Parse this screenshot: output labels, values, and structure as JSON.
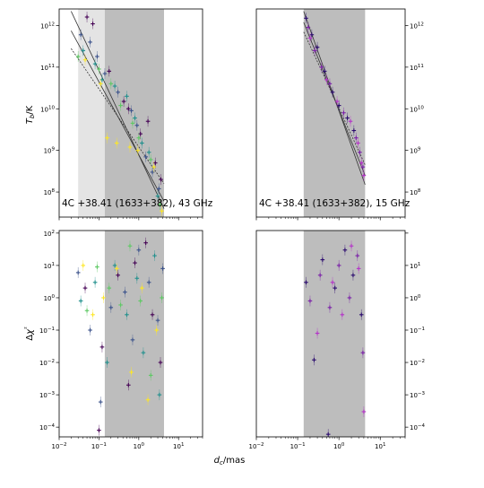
{
  "figure": {
    "xlabel": "d_c/mas",
    "ylabel_top": "T_b/K",
    "ylabel_bottom": "Δχ²"
  },
  "colors": {
    "axes": "#000000",
    "shade_band": "#bdbdbd",
    "shade_extra": "#e4e4e4",
    "fit_line": "#333333",
    "viridis": [
      "#440154",
      "#3b528b",
      "#21908d",
      "#5dc963",
      "#fde725"
    ],
    "purple_series": [
      "#2a0a6e",
      "#7a1fa8",
      "#b432c8"
    ]
  },
  "chart_data": [
    {
      "type": "scatter",
      "panel": "top-left",
      "annotation": "4C +38.41 (1633+382), 43 GHz",
      "xlabel": "",
      "ylabel": "T_b/K",
      "xscale": "log",
      "yscale": "log",
      "xlim": [
        0.01,
        40
      ],
      "ylim": [
        25000000,
        2500000000000
      ],
      "yticks": [
        "10^8",
        "10^9",
        "10^10",
        "10^11",
        "10^12"
      ],
      "ytick_side": "left",
      "xtick_labels": false,
      "shaded_band": [
        0.14,
        4.3
      ],
      "extra_shaded": [
        0.03,
        0.14
      ],
      "fit_lines": [
        {
          "x": [
            0.02,
            4.3
          ],
          "y": [
            2200000000000.0,
            40000000.0
          ]
        },
        {
          "x": [
            0.02,
            4.3
          ],
          "y": [
            750000000000.0,
            60000000.0
          ]
        },
        {
          "x": [
            0.02,
            4.3
          ],
          "y": [
            280000000000.0,
            160000000.0
          ]
        }
      ],
      "series": [
        {
          "color": "#440154",
          "points": [
            [
              0.05,
              1600000000000.0
            ],
            [
              0.07,
              1100000000000.0
            ],
            [
              0.18,
              80000000000.0
            ],
            [
              0.42,
              15000000000.0
            ],
            [
              1.1,
              2500000000.0
            ],
            [
              1.7,
              5000000000.0
            ],
            [
              2.6,
              500000000.0
            ],
            [
              3.6,
              200000000.0
            ],
            [
              0.55,
              10000000000.0
            ]
          ]
        },
        {
          "color": "#3b528b",
          "points": [
            [
              0.035,
              600000000000.0
            ],
            [
              0.06,
              400000000000.0
            ],
            [
              0.09,
              180000000000.0
            ],
            [
              0.14,
              70000000000.0
            ],
            [
              0.3,
              25000000000.0
            ],
            [
              0.65,
              9000000000.0
            ],
            [
              0.9,
              4000000000.0
            ],
            [
              1.5,
              700000000.0
            ],
            [
              2.2,
              300000000.0
            ],
            [
              3.2,
              120000000.0
            ]
          ]
        },
        {
          "color": "#21908d",
          "points": [
            [
              0.04,
              250000000000.0
            ],
            [
              0.08,
              120000000000.0
            ],
            [
              0.12,
              50000000000.0
            ],
            [
              0.25,
              35000000000.0
            ],
            [
              0.5,
              20000000000.0
            ],
            [
              0.8,
              6000000000.0
            ],
            [
              1.2,
              1500000000.0
            ],
            [
              1.8,
              900000000.0
            ],
            [
              3.0,
              80000000.0
            ]
          ]
        },
        {
          "color": "#5dc963",
          "points": [
            [
              0.03,
              180000000000.0
            ],
            [
              0.1,
              90000000000.0
            ],
            [
              0.2,
              40000000000.0
            ],
            [
              0.35,
              12000000000.0
            ],
            [
              0.7,
              4500000000.0
            ],
            [
              1.0,
              2000000000.0
            ],
            [
              2.0,
              600000000.0
            ],
            [
              3.4,
              50000000.0
            ]
          ]
        },
        {
          "color": "#fde725",
          "points": [
            [
              0.045,
              150000000000.0
            ],
            [
              0.11,
              40000000000.0
            ],
            [
              0.16,
              2000000000.0
            ],
            [
              0.28,
              1500000000.0
            ],
            [
              0.6,
              1200000000.0
            ],
            [
              0.95,
              1000000000.0
            ],
            [
              2.4,
              400000000.0
            ],
            [
              3.8,
              35000000.0
            ]
          ]
        }
      ]
    },
    {
      "type": "scatter",
      "panel": "top-right",
      "annotation": "4C +38.41 (1633+382), 15 GHz",
      "xlabel": "",
      "ylabel": "",
      "xscale": "log",
      "yscale": "log",
      "xlim": [
        0.01,
        40
      ],
      "ylim": [
        25000000,
        2500000000000
      ],
      "yticks": [
        "10^8",
        "10^9",
        "10^10",
        "10^11",
        "10^12"
      ],
      "ytick_side": "right",
      "xtick_labels": false,
      "shaded_band": [
        0.14,
        4.3
      ],
      "fit_lines": [
        {
          "x": [
            0.14,
            4.3
          ],
          "y": [
            2200000000000.0,
            150000000.0
          ]
        },
        {
          "x": [
            0.14,
            4.3
          ],
          "y": [
            1200000000000.0,
            250000000.0
          ]
        },
        {
          "x": [
            0.14,
            4.3
          ],
          "y": [
            700000000000.0,
            450000000.0
          ]
        }
      ],
      "series": [
        {
          "color": "#2a0a6e",
          "points": [
            [
              0.16,
              1500000000000.0
            ],
            [
              0.22,
              600000000000.0
            ],
            [
              0.3,
              300000000000.0
            ],
            [
              0.45,
              80000000000.0
            ],
            [
              0.7,
              25000000000.0
            ],
            [
              1.0,
              12000000000.0
            ],
            [
              1.6,
              6000000000.0
            ],
            [
              2.3,
              3000000000.0
            ]
          ]
        },
        {
          "color": "#7a1fa8",
          "points": [
            [
              0.18,
              900000000000.0
            ],
            [
              0.26,
              250000000000.0
            ],
            [
              0.38,
              100000000000.0
            ],
            [
              0.6,
              40000000000.0
            ],
            [
              1.3,
              8000000000.0
            ],
            [
              2.6,
              2000000000.0
            ],
            [
              3.2,
              900000000.0
            ],
            [
              3.8,
              400000000.0
            ]
          ]
        },
        {
          "color": "#b432c8",
          "points": [
            [
              0.2,
              500000000000.0
            ],
            [
              0.5,
              50000000000.0
            ],
            [
              0.9,
              15000000000.0
            ],
            [
              1.9,
              5000000000.0
            ],
            [
              2.9,
              1500000000.0
            ],
            [
              3.5,
              500000000.0
            ],
            [
              4.0,
              250000000.0
            ]
          ]
        }
      ]
    },
    {
      "type": "scatter",
      "panel": "bottom-left",
      "xlabel": "d_c/mas",
      "ylabel": "Δχ²",
      "xscale": "log",
      "yscale": "log",
      "xlim": [
        0.01,
        40
      ],
      "ylim": [
        5e-05,
        120
      ],
      "xticks": [
        "10^-2",
        "10^-1",
        "10^0",
        "10^1"
      ],
      "yticks": [
        "10^-4",
        "10^-3",
        "10^-2",
        "10^-1",
        "10^0",
        "10^1",
        "10^2"
      ],
      "ytick_side": "left",
      "shaded_band": [
        0.14,
        4.3
      ],
      "series": [
        {
          "color": "#440154",
          "points": [
            [
              0.045,
              2.0
            ],
            [
              0.1,
              8e-05
            ],
            [
              0.12,
              0.03
            ],
            [
              0.3,
              5.0
            ],
            [
              0.55,
              0.002
            ],
            [
              0.8,
              12
            ],
            [
              1.5,
              50
            ],
            [
              2.2,
              0.3
            ],
            [
              3.5,
              0.01
            ]
          ]
        },
        {
          "color": "#3b528b",
          "points": [
            [
              0.03,
              6.0
            ],
            [
              0.06,
              0.1
            ],
            [
              0.11,
              0.0006
            ],
            [
              0.2,
              0.5
            ],
            [
              0.45,
              1.5
            ],
            [
              0.7,
              0.05
            ],
            [
              1.0,
              30
            ],
            [
              1.8,
              3.0
            ],
            [
              3.0,
              0.2
            ],
            [
              4.0,
              8.0
            ]
          ]
        },
        {
          "color": "#21908d",
          "points": [
            [
              0.035,
              0.8
            ],
            [
              0.08,
              3.0
            ],
            [
              0.16,
              0.01
            ],
            [
              0.25,
              10
            ],
            [
              0.5,
              0.3
            ],
            [
              0.9,
              4.0
            ],
            [
              1.3,
              0.02
            ],
            [
              2.5,
              20
            ],
            [
              3.3,
              0.001
            ]
          ]
        },
        {
          "color": "#5dc963",
          "points": [
            [
              0.05,
              0.4
            ],
            [
              0.09,
              9.0
            ],
            [
              0.18,
              2.0
            ],
            [
              0.35,
              0.6
            ],
            [
              0.6,
              40
            ],
            [
              1.1,
              0.8
            ],
            [
              2.0,
              0.004
            ],
            [
              3.8,
              1.0
            ]
          ]
        },
        {
          "color": "#fde725",
          "points": [
            [
              0.04,
              10
            ],
            [
              0.07,
              0.3
            ],
            [
              0.13,
              1.0
            ],
            [
              0.28,
              8.0
            ],
            [
              0.65,
              0.005
            ],
            [
              1.2,
              2.0
            ],
            [
              1.7,
              0.0007
            ],
            [
              2.8,
              0.1
            ]
          ]
        }
      ]
    },
    {
      "type": "scatter",
      "panel": "bottom-right",
      "xlabel": "",
      "ylabel": "",
      "xscale": "log",
      "yscale": "log",
      "xlim": [
        0.01,
        40
      ],
      "ylim": [
        5e-05,
        120
      ],
      "xticks": [
        "10^-2",
        "10^-1",
        "10^0",
        "10^1"
      ],
      "yticks": [
        "10^-4",
        "10^-3",
        "10^-2",
        "10^-1",
        "10^0",
        "10^1"
      ],
      "ytick_side": "right",
      "shaded_band": [
        0.14,
        4.3
      ],
      "series": [
        {
          "color": "#2a0a6e",
          "points": [
            [
              0.16,
              3.0
            ],
            [
              0.25,
              0.012
            ],
            [
              0.4,
              15
            ],
            [
              0.55,
              6e-05
            ],
            [
              0.8,
              2.0
            ],
            [
              1.4,
              30
            ],
            [
              2.2,
              5.0
            ],
            [
              3.5,
              0.3
            ]
          ]
        },
        {
          "color": "#7a1fa8",
          "points": [
            [
              0.2,
              0.8
            ],
            [
              0.35,
              5.0
            ],
            [
              0.6,
              0.5
            ],
            [
              1.0,
              10
            ],
            [
              1.8,
              1.0
            ],
            [
              2.8,
              20
            ],
            [
              3.8,
              0.02
            ]
          ]
        },
        {
          "color": "#b432c8",
          "points": [
            [
              0.3,
              0.08
            ],
            [
              0.7,
              3.0
            ],
            [
              1.2,
              0.3
            ],
            [
              2.0,
              40
            ],
            [
              3.0,
              8.0
            ],
            [
              4.0,
              0.0003
            ]
          ]
        }
      ]
    }
  ]
}
